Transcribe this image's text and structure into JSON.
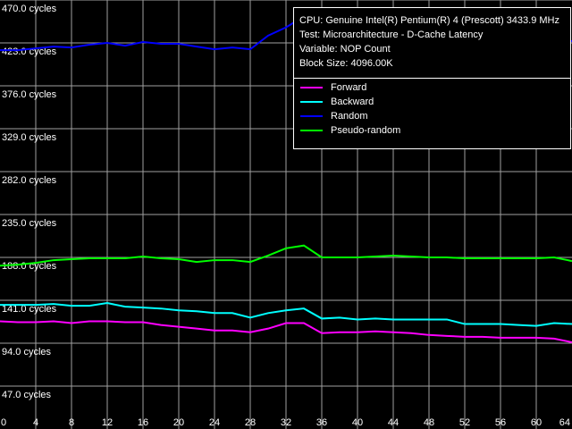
{
  "chart_data": {
    "type": "line",
    "title": "",
    "xlabel": "",
    "ylabel": "",
    "xlim": [
      0,
      64
    ],
    "ylim": [
      0,
      470
    ],
    "grid": true,
    "legend_placement": "top-right",
    "x_ticks": [
      "0",
      "4",
      "8",
      "12",
      "16",
      "20",
      "24",
      "28",
      "32",
      "36",
      "40",
      "44",
      "48",
      "52",
      "56",
      "60",
      "64"
    ],
    "y_ticks": [
      "470.0 cycles",
      "423.0 cycles",
      "376.0 cycles",
      "329.0 cycles",
      "282.0 cycles",
      "235.0 cycles",
      "188.0 cycles",
      "141.0 cycles",
      "94.0 cycles",
      "47.0 cycles"
    ],
    "y_tick_values": [
      470,
      423,
      376,
      329,
      282,
      235,
      188,
      141,
      94,
      47
    ],
    "x_tick_values": [
      0,
      4,
      8,
      12,
      16,
      20,
      24,
      28,
      32,
      36,
      40,
      44,
      48,
      52,
      56,
      60,
      64
    ],
    "x": [
      0,
      2,
      4,
      6,
      8,
      10,
      12,
      14,
      16,
      18,
      20,
      22,
      24,
      26,
      28,
      30,
      32,
      34,
      36,
      38,
      40,
      42,
      44,
      46,
      48,
      50,
      52,
      54,
      56,
      58,
      60,
      62,
      64
    ],
    "series": [
      {
        "name": "Forward",
        "color": "#ff00ff",
        "values": [
          118,
          117,
          117,
          118,
          116,
          118,
          118,
          117,
          117,
          114,
          112,
          110,
          108,
          108,
          106,
          110,
          116,
          116,
          105,
          106,
          106,
          107,
          106,
          105,
          103,
          102,
          101,
          101,
          100,
          100,
          100,
          99,
          95
        ]
      },
      {
        "name": "Backward",
        "color": "#00ffff",
        "values": [
          136,
          136,
          136,
          137,
          135,
          135,
          138,
          134,
          133,
          132,
          130,
          129,
          127,
          127,
          122,
          127,
          130,
          132,
          121,
          122,
          120,
          121,
          120,
          120,
          120,
          120,
          115,
          115,
          115,
          114,
          113,
          116,
          115
        ]
      },
      {
        "name": "Random",
        "color": "#0000ff",
        "values": [
          415,
          415,
          417,
          419,
          418,
          421,
          423,
          420,
          424,
          422,
          422,
          419,
          416,
          418,
          416,
          431,
          440,
          452,
          460,
          425,
          425,
          425,
          424,
          424,
          424,
          423,
          425,
          424,
          420,
          424,
          425,
          425,
          425
        ]
      },
      {
        "name": "Pseudo-random",
        "color": "#00ff00",
        "values": [
          179,
          180,
          182,
          185,
          186,
          187,
          187,
          187,
          189,
          187,
          186,
          183,
          185,
          185,
          183,
          190,
          198,
          201,
          188,
          188,
          188,
          189,
          190,
          189,
          188,
          188,
          187,
          187,
          187,
          187,
          187,
          188,
          184
        ]
      }
    ],
    "info_lines": [
      "CPU: Genuine Intel(R) Pentium(R) 4 (Prescott) 3433.9 MHz",
      "Test: Microarchitecture - D-Cache Latency",
      "Variable: NOP Count",
      "Block Size: 4096.00K"
    ],
    "colors": {
      "background": "#000000",
      "grid": "#a0a0a0",
      "text": "#ffffff"
    }
  }
}
